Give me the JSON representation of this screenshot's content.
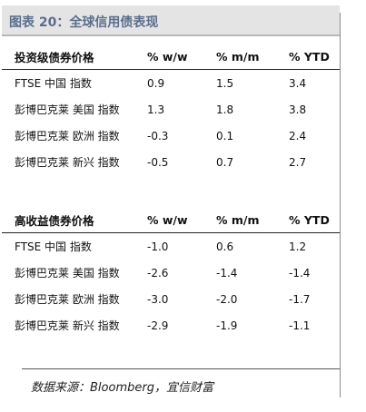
{
  "title": "图表 20：全球信用债表现",
  "table1": {
    "headers": [
      "投资级债券价格",
      "% w/w",
      "% m/m",
      "% YTD"
    ],
    "rows": [
      [
        "FTSE 中国 指数",
        "0.9",
        "1.5",
        "3.4"
      ],
      [
        "彭博巴克莱 美国 指数",
        "1.3",
        "1.8",
        "3.8"
      ],
      [
        "彭博巴克莱 欧洲 指数",
        "-0.3",
        "0.1",
        "2.4"
      ],
      [
        "彭博巴克莱 新兴 指数",
        "-0.5",
        "0.7",
        "2.7"
      ]
    ]
  },
  "table2": {
    "headers": [
      "高收益债券价格",
      "% w/w",
      "% m/m",
      "% YTD"
    ],
    "rows": [
      [
        "FTSE 中国 指数",
        "-1.0",
        "0.6",
        "1.2"
      ],
      [
        "彭博巴克莱 美国 指数",
        "-2.6",
        "-1.4",
        "-1.4"
      ],
      [
        "彭博巴克莱 欧洲 指数",
        "-3.0",
        "-2.0",
        "-1.7"
      ],
      [
        "彭博巴克莱 新兴 指数",
        "-2.9",
        "-1.9",
        "-1.1"
      ]
    ]
  },
  "source": "数据来源：Bloomberg，宜信财富",
  "colors": {
    "title_text": "#5a6e8c",
    "title_background": "#e4e4e4"
  }
}
